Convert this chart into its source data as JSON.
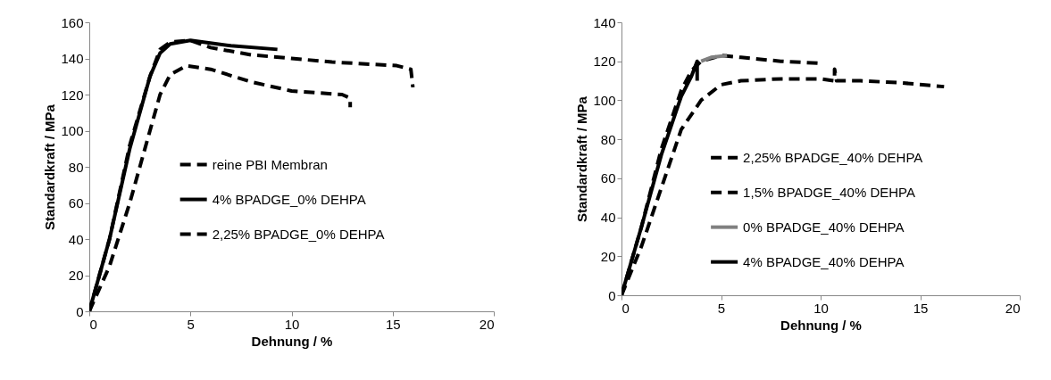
{
  "chart_data": [
    {
      "type": "line",
      "xlabel": "Dehnung / %",
      "ylabel": "Standardkraft / MPa",
      "xlim": [
        0,
        20
      ],
      "xticks": [
        0,
        5,
        10,
        15,
        20
      ],
      "ylim": [
        0,
        160
      ],
      "yticks": [
        0,
        20,
        40,
        60,
        80,
        100,
        120,
        140,
        160
      ],
      "grid": false,
      "legend": "right",
      "series": [
        {
          "name": "reine PBI Membran",
          "color": "#000000",
          "line_style": "dashed",
          "x": [
            0,
            1,
            2,
            2.5,
            3,
            3.5,
            4,
            4.8,
            6,
            8,
            10,
            12.5,
            12.9,
            12.9
          ],
          "values": [
            0,
            25,
            60,
            80,
            100,
            120,
            131,
            136,
            134,
            127,
            122,
            120,
            118,
            113
          ]
        },
        {
          "name": "4% BPADGE_0% DEHPA",
          "color": "#000000",
          "line_style": "solid",
          "x": [
            0,
            1,
            2,
            2.5,
            3,
            3.5,
            4,
            5,
            7,
            9.3
          ],
          "values": [
            0,
            40,
            90,
            110,
            130,
            143,
            148,
            150,
            147,
            145
          ]
        },
        {
          "name": "2,25% BPADGE_0% DEHPA",
          "color": "#000000",
          "line_style": "dashed",
          "x": [
            0,
            1,
            2,
            3,
            3.5,
            4,
            5,
            6,
            8,
            10,
            12,
            15.2,
            15.9,
            16
          ],
          "values": [
            0,
            40,
            92,
            130,
            145,
            149,
            150,
            146,
            142,
            140,
            138,
            136,
            134,
            124
          ]
        }
      ]
    },
    {
      "type": "line",
      "xlabel": "Dehnung / %",
      "ylabel": "Standardkraft / MPa",
      "xlim": [
        0,
        20
      ],
      "xticks": [
        0,
        5,
        10,
        15,
        20
      ],
      "ylim": [
        0,
        140
      ],
      "yticks": [
        0,
        20,
        40,
        60,
        80,
        100,
        120,
        140
      ],
      "grid": false,
      "legend": "right",
      "series": [
        {
          "name": "2,25% BPADGE_40% DEHPA",
          "color": "#000000",
          "line_style": "dashed",
          "x": [
            0,
            1,
            2,
            3,
            3.5,
            4,
            5,
            6,
            8,
            10
          ],
          "values": [
            0,
            35,
            75,
            105,
            115,
            120,
            123,
            122,
            120,
            119
          ]
        },
        {
          "name": "1,5% BPADGE_40% DEHPA",
          "color": "#000000",
          "line_style": "dashed",
          "x": [
            0,
            1,
            2,
            3,
            4,
            5,
            6,
            8,
            10,
            10.7,
            10.7,
            10.8,
            12,
            14,
            16.2
          ],
          "values": [
            0,
            25,
            55,
            85,
            100,
            108,
            110,
            111,
            111,
            110,
            116,
            110,
            110,
            109,
            107
          ]
        },
        {
          "name": "0% BPADGE_40% DEHPA",
          "color": "#808080",
          "line_style": "solid",
          "x": [
            4,
            4.5,
            5.3
          ],
          "values": [
            120,
            122,
            123
          ]
        },
        {
          "name": "4% BPADGE_40% DEHPA",
          "color": "#000000",
          "line_style": "solid",
          "x": [
            0,
            1,
            2,
            3,
            3.5,
            3.8,
            3.8
          ],
          "values": [
            0,
            35,
            72,
            102,
            112,
            120,
            110
          ]
        }
      ]
    }
  ]
}
